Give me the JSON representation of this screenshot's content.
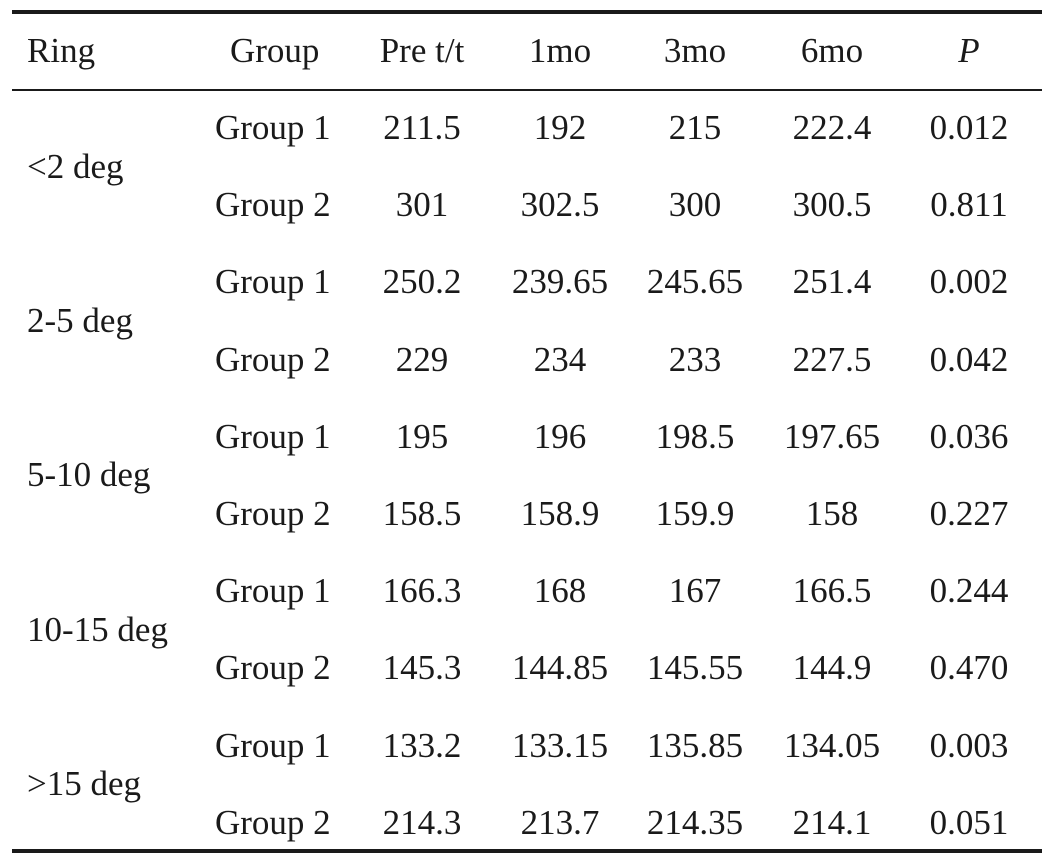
{
  "table": {
    "headers": {
      "ring": "Ring",
      "group": "Group",
      "pre": "Pre t/t",
      "m1": "1mo",
      "m3": "3mo",
      "m6": "6mo",
      "p": "P"
    },
    "rings": [
      {
        "label": "<2 deg",
        "rows": [
          {
            "group": "Group 1",
            "pre": "211.5",
            "m1": "192",
            "m3": "215",
            "m6": "222.4",
            "p": "0.012"
          },
          {
            "group": "Group 2",
            "pre": "301",
            "m1": "302.5",
            "m3": "300",
            "m6": "300.5",
            "p": "0.811"
          }
        ]
      },
      {
        "label": "2-5 deg",
        "rows": [
          {
            "group": "Group 1",
            "pre": "250.2",
            "m1": "239.65",
            "m3": "245.65",
            "m6": "251.4",
            "p": "0.002"
          },
          {
            "group": "Group 2",
            "pre": "229",
            "m1": "234",
            "m3": "233",
            "m6": "227.5",
            "p": "0.042"
          }
        ]
      },
      {
        "label": "5-10 deg",
        "rows": [
          {
            "group": "Group 1",
            "pre": "195",
            "m1": "196",
            "m3": "198.5",
            "m6": "197.65",
            "p": "0.036"
          },
          {
            "group": "Group 2",
            "pre": "158.5",
            "m1": "158.9",
            "m3": "159.9",
            "m6": "158",
            "p": "0.227"
          }
        ]
      },
      {
        "label": "10-15 deg",
        "rows": [
          {
            "group": "Group 1",
            "pre": "166.3",
            "m1": "168",
            "m3": "167",
            "m6": "166.5",
            "p": "0.244"
          },
          {
            "group": "Group 2",
            "pre": "145.3",
            "m1": "144.85",
            "m3": "145.55",
            "m6": "144.9",
            "p": "0.470"
          }
        ]
      },
      {
        "label": ">15 deg",
        "rows": [
          {
            "group": "Group 1",
            "pre": "133.2",
            "m1": "133.15",
            "m3": "135.85",
            "m6": "134.05",
            "p": "0.003"
          },
          {
            "group": "Group 2",
            "pre": "214.3",
            "m1": "213.7",
            "m3": "214.35",
            "m6": "214.1",
            "p": "0.051"
          }
        ]
      }
    ]
  }
}
